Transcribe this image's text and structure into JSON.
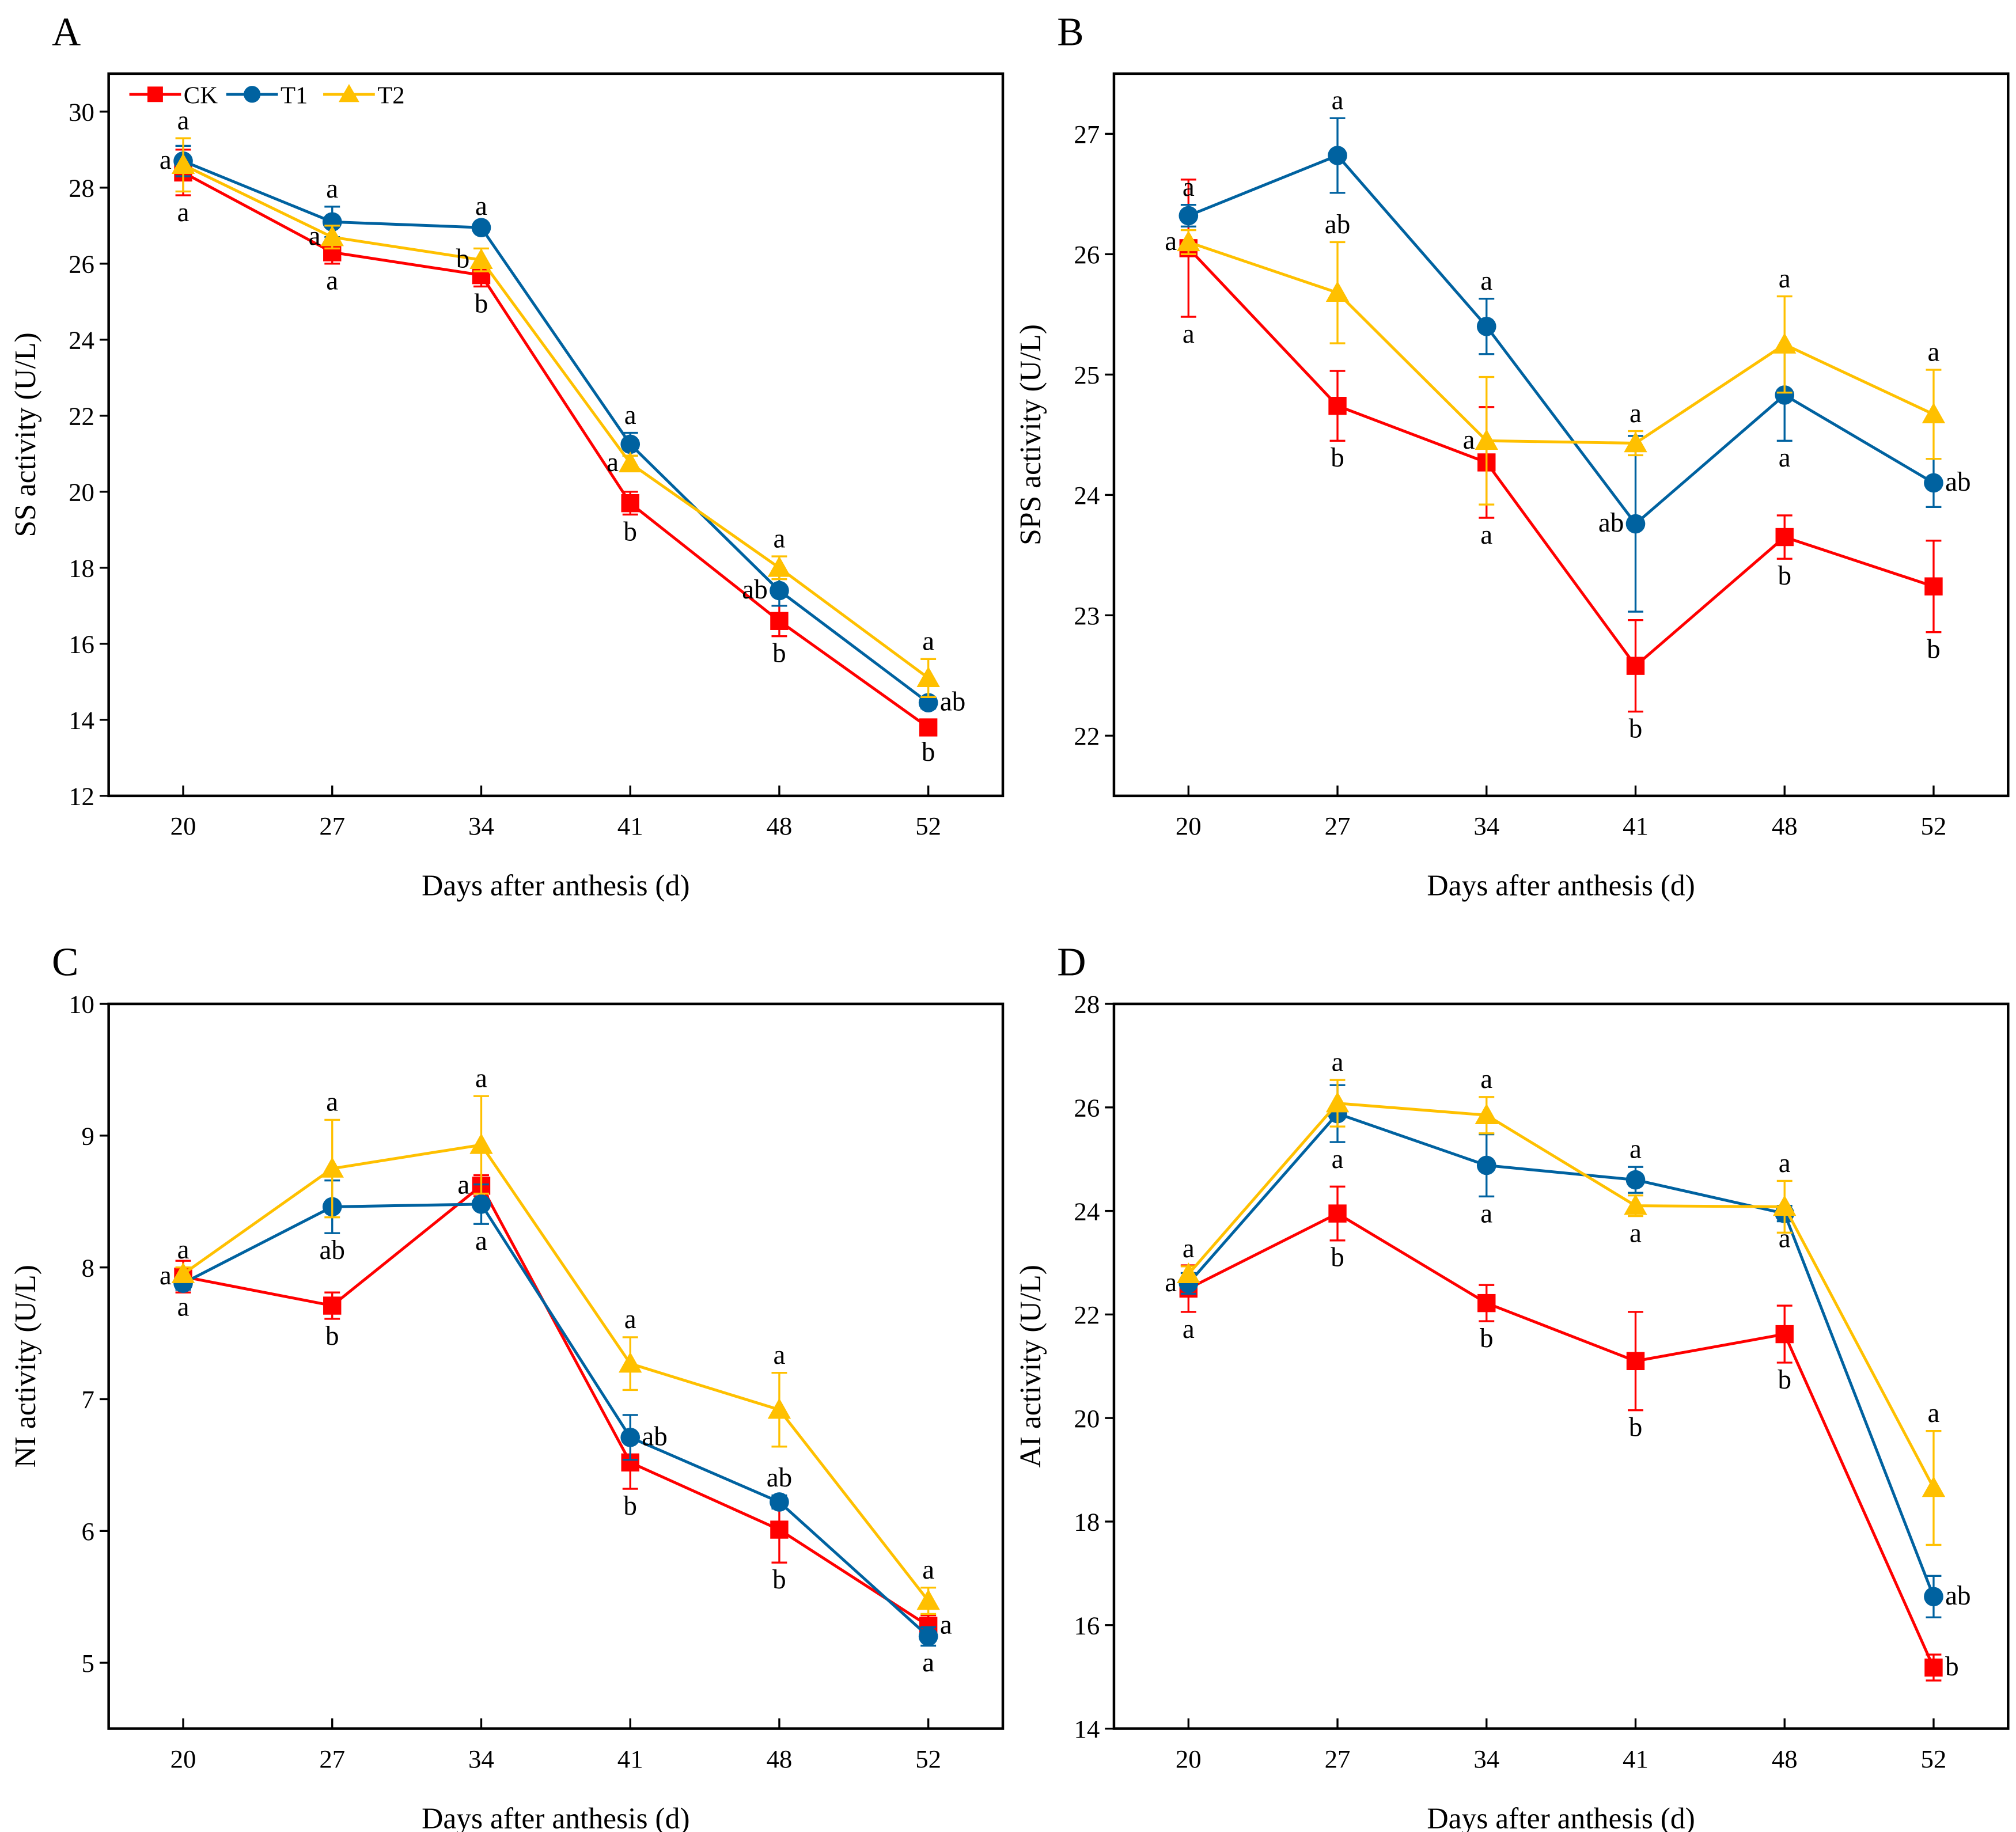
{
  "colors": {
    "CK": "#ff0000",
    "T1": "#0062a0",
    "T2": "#ffc000"
  },
  "markers": {
    "CK": "square",
    "T1": "circle",
    "T2": "triangle"
  },
  "chart_data": [
    {
      "panel": "A",
      "type": "line",
      "error_bars": true,
      "xlabel": "Days after anthesis (d)",
      "ylabel": "SS activity (U/L)",
      "categories": [
        "20",
        "27",
        "34",
        "41",
        "48",
        "52"
      ],
      "ylim": [
        12,
        31
      ],
      "yticks": [
        12,
        14,
        16,
        18,
        20,
        22,
        24,
        26,
        28,
        30
      ],
      "legend": {
        "placement": "top-left",
        "entries": [
          "CK",
          "T1",
          "T2"
        ]
      },
      "series": [
        {
          "name": "CK",
          "values": [
            28.4,
            26.3,
            25.7,
            19.7,
            16.6,
            13.8
          ],
          "errors": [
            0.6,
            0.3,
            0.3,
            0.3,
            0.4,
            0.2
          ],
          "letters": [
            [
              "a",
              "below"
            ],
            [
              "a",
              "below"
            ],
            [
              "b",
              "below"
            ],
            [
              "b",
              "below"
            ],
            [
              "b",
              "below"
            ],
            [
              "b",
              "below"
            ]
          ]
        },
        {
          "name": "T1",
          "values": [
            28.7,
            27.1,
            26.95,
            21.25,
            17.4,
            14.45
          ],
          "errors": [
            0.4,
            0.4,
            0.1,
            0.3,
            0.4,
            0.15
          ],
          "letters": [
            [
              "a",
              "left"
            ],
            [
              "a",
              "above"
            ],
            [
              "a",
              "above"
            ],
            [
              "a",
              "above"
            ],
            [
              "ab",
              "left"
            ],
            [
              "ab",
              "right"
            ]
          ]
        },
        {
          "name": "T2",
          "values": [
            28.6,
            26.7,
            26.1,
            20.75,
            18.0,
            15.1
          ],
          "errors": [
            0.7,
            0.3,
            0.3,
            0.2,
            0.3,
            0.5
          ],
          "letters": [
            [
              "a",
              "above"
            ],
            [
              "a",
              "left"
            ],
            [
              "b",
              "left"
            ],
            [
              "a",
              "left"
            ],
            [
              "a",
              "above"
            ],
            [
              "a",
              "above"
            ]
          ]
        }
      ]
    },
    {
      "panel": "B",
      "type": "line",
      "error_bars": true,
      "xlabel": "Days after anthesis (d)",
      "ylabel": "SPS activity (U/L)",
      "categories": [
        "20",
        "27",
        "34",
        "41",
        "48",
        "52"
      ],
      "ylim": [
        21.5,
        27.5
      ],
      "yticks": [
        22,
        23,
        24,
        25,
        26,
        27
      ],
      "series": [
        {
          "name": "CK",
          "values": [
            26.05,
            24.74,
            24.27,
            22.58,
            23.65,
            23.24
          ],
          "errors": [
            0.57,
            0.29,
            0.46,
            0.38,
            0.18,
            0.38
          ],
          "letters": [
            [
              "a",
              "below"
            ],
            [
              "b",
              "below"
            ],
            [
              "a",
              "below"
            ],
            [
              "b",
              "below"
            ],
            [
              "b",
              "below"
            ],
            [
              "b",
              "below"
            ]
          ]
        },
        {
          "name": "T1",
          "values": [
            26.32,
            26.82,
            25.4,
            23.76,
            24.83,
            24.1
          ],
          "errors": [
            0.09,
            0.31,
            0.23,
            0.73,
            0.38,
            0.2
          ],
          "letters": [
            [
              "a",
              "above"
            ],
            [
              "a",
              "above"
            ],
            [
              "a",
              "above"
            ],
            [
              "ab",
              "left"
            ],
            [
              "a",
              "below"
            ],
            [
              "ab",
              "right"
            ]
          ]
        },
        {
          "name": "T2",
          "values": [
            26.1,
            25.68,
            24.45,
            24.43,
            25.25,
            24.67
          ],
          "errors": [
            0.1,
            0.42,
            0.53,
            0.1,
            0.4,
            0.37
          ],
          "letters": [
            [
              "a",
              "left"
            ],
            [
              "ab",
              "above"
            ],
            [
              "a",
              "left"
            ],
            [
              "a",
              "above"
            ],
            [
              "a",
              "above"
            ],
            [
              "a",
              "above"
            ]
          ]
        }
      ]
    },
    {
      "panel": "C",
      "type": "line",
      "error_bars": true,
      "xlabel": "Days after anthesis (d)",
      "ylabel": "NI activity (U/L)",
      "categories": [
        "20",
        "27",
        "34",
        "41",
        "48",
        "52"
      ],
      "ylim": [
        4.5,
        10
      ],
      "yticks": [
        5,
        6,
        7,
        8,
        9,
        10
      ],
      "series": [
        {
          "name": "CK",
          "values": [
            7.93,
            7.71,
            8.62,
            6.52,
            6.01,
            5.28
          ],
          "errors": [
            0.12,
            0.1,
            0.08,
            0.2,
            0.25,
            0.08
          ],
          "letters": [
            [
              "a",
              "left"
            ],
            [
              "b",
              "below"
            ],
            [
              "a",
              "left"
            ],
            [
              "b",
              "below"
            ],
            [
              "b",
              "below"
            ],
            [
              "a",
              "right"
            ]
          ]
        },
        {
          "name": "T1",
          "values": [
            7.88,
            8.46,
            8.48,
            6.71,
            6.22,
            5.2
          ],
          "errors": [
            0.05,
            0.2,
            0.15,
            0.17,
            0.05,
            0.07
          ],
          "letters": [
            [
              "a",
              "below"
            ],
            [
              "ab",
              "below"
            ],
            [
              "a",
              "below"
            ],
            [
              "ab",
              "right"
            ],
            [
              "ab",
              "above"
            ],
            [
              "a",
              "below"
            ]
          ]
        },
        {
          "name": "T2",
          "values": [
            7.95,
            8.75,
            8.93,
            7.27,
            6.92,
            5.47
          ],
          "errors": [
            0.05,
            0.37,
            0.37,
            0.2,
            0.28,
            0.1
          ],
          "letters": [
            [
              "a",
              "above"
            ],
            [
              "a",
              "above"
            ],
            [
              "a",
              "above"
            ],
            [
              "a",
              "above"
            ],
            [
              "a",
              "above"
            ],
            [
              "a",
              "above"
            ]
          ]
        }
      ]
    },
    {
      "panel": "D",
      "type": "line",
      "error_bars": true,
      "xlabel": "Days after anthesis (d)",
      "ylabel": "AI activity (U/L)",
      "categories": [
        "20",
        "27",
        "34",
        "41",
        "48",
        "52"
      ],
      "ylim": [
        14,
        28
      ],
      "yticks": [
        14,
        16,
        18,
        20,
        22,
        24,
        26,
        28
      ],
      "series": [
        {
          "name": "CK",
          "values": [
            22.5,
            23.95,
            22.22,
            21.1,
            21.62,
            15.18
          ],
          "errors": [
            0.45,
            0.52,
            0.35,
            0.95,
            0.55,
            0.25
          ],
          "letters": [
            [
              "a",
              "below"
            ],
            [
              "b",
              "below"
            ],
            [
              "b",
              "below"
            ],
            [
              "b",
              "below"
            ],
            [
              "b",
              "below"
            ],
            [
              "b",
              "right"
            ]
          ]
        },
        {
          "name": "T1",
          "values": [
            22.6,
            25.88,
            24.88,
            24.6,
            23.95,
            16.55
          ],
          "errors": [
            0.2,
            0.55,
            0.6,
            0.25,
            0.15,
            0.4
          ],
          "letters": [
            [
              "a",
              "left"
            ],
            [
              "a",
              "below"
            ],
            [
              "a",
              "below"
            ],
            [
              "a",
              "above"
            ],
            [
              "a",
              "below"
            ],
            [
              "ab",
              "right"
            ]
          ]
        },
        {
          "name": "T2",
          "values": [
            22.78,
            26.08,
            25.85,
            24.1,
            24.08,
            18.65
          ],
          "errors": [
            0.15,
            0.45,
            0.35,
            0.2,
            0.5,
            1.1
          ],
          "letters": [
            [
              "a",
              "above"
            ],
            [
              "a",
              "above"
            ],
            [
              "a",
              "above"
            ],
            [
              "a",
              "below"
            ],
            [
              "a",
              "above"
            ],
            [
              "a",
              "above"
            ]
          ]
        }
      ]
    }
  ]
}
